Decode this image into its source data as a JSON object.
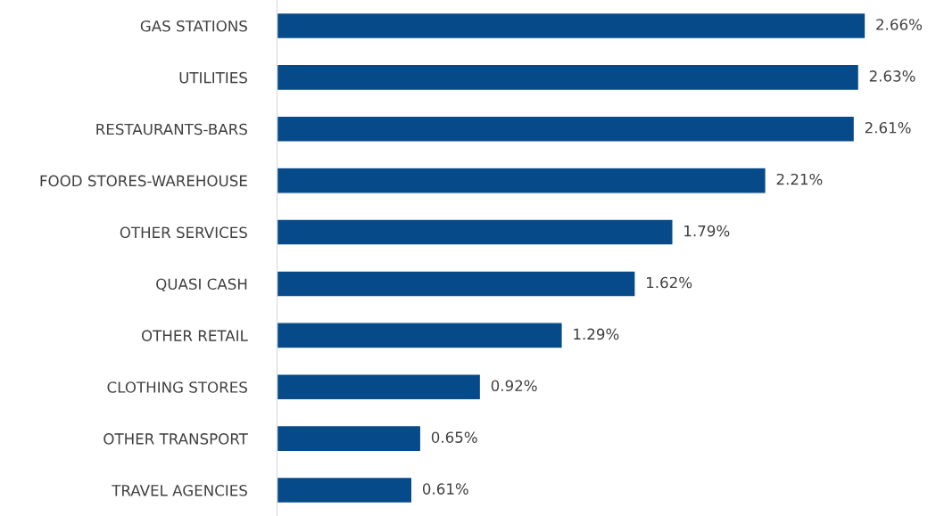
{
  "chart_data": {
    "type": "bar",
    "orientation": "horizontal",
    "categories": [
      "GAS STATIONS",
      "UTILITIES",
      "RESTAURANTS-BARS",
      "FOOD STORES-WAREHOUSE",
      "OTHER SERVICES",
      "QUASI CASH",
      "OTHER RETAIL",
      "CLOTHING STORES",
      "OTHER TRANSPORT",
      "TRAVEL AGENCIES"
    ],
    "values": [
      2.66,
      2.63,
      2.61,
      2.21,
      1.79,
      1.62,
      1.29,
      0.92,
      0.65,
      0.61
    ],
    "value_labels": [
      "2.66%",
      "2.63%",
      "2.61%",
      "2.21%",
      "1.79%",
      "1.62%",
      "1.29%",
      "0.92%",
      "0.65%",
      "0.61%"
    ],
    "color": "#064a8a",
    "tick_labels": "y",
    "grid": false,
    "legend": false
  }
}
